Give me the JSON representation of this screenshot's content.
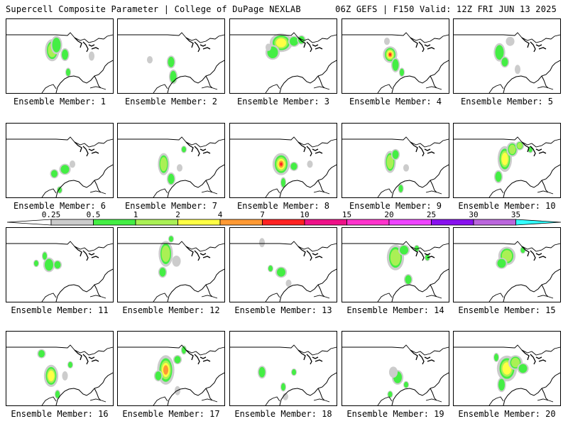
{
  "header": {
    "left": "Supercell Composite Parameter | College of DuPage NEXLAB",
    "right": "06Z GEFS | F150 Valid: 12Z FRI JUN 13 2025"
  },
  "members": [
    {
      "label": "Ensemble Member: 1",
      "blobs": [
        [
          0.43,
          0.42,
          0.05,
          0.12,
          2
        ],
        [
          0.47,
          0.35,
          0.04,
          0.1,
          1
        ],
        [
          0.55,
          0.48,
          0.03,
          0.07,
          1
        ],
        [
          0.58,
          0.72,
          0.02,
          0.05,
          1
        ],
        [
          0.8,
          0.5,
          0.02,
          0.05,
          0
        ]
      ]
    },
    {
      "label": "Ensemble Member: 2",
      "blobs": [
        [
          0.5,
          0.58,
          0.03,
          0.07,
          1
        ],
        [
          0.52,
          0.78,
          0.03,
          0.08,
          1
        ],
        [
          0.3,
          0.55,
          0.02,
          0.04,
          0
        ]
      ]
    },
    {
      "label": "Ensemble Member: 3",
      "blobs": [
        [
          0.48,
          0.32,
          0.08,
          0.1,
          3
        ],
        [
          0.4,
          0.45,
          0.05,
          0.08,
          1
        ],
        [
          0.6,
          0.3,
          0.04,
          0.06,
          1
        ],
        [
          0.67,
          0.28,
          0.03,
          0.05,
          1
        ],
        [
          0.36,
          0.38,
          0.02,
          0.04,
          0
        ]
      ]
    },
    {
      "label": "Ensemble Member: 4",
      "blobs": [
        [
          0.45,
          0.48,
          0.05,
          0.09,
          5
        ],
        [
          0.5,
          0.62,
          0.03,
          0.08,
          1
        ],
        [
          0.56,
          0.72,
          0.02,
          0.05,
          1
        ],
        [
          0.42,
          0.3,
          0.02,
          0.04,
          0
        ]
      ]
    },
    {
      "label": "Ensemble Member: 5",
      "blobs": [
        [
          0.43,
          0.45,
          0.04,
          0.1,
          1
        ],
        [
          0.48,
          0.58,
          0.03,
          0.06,
          1
        ],
        [
          0.53,
          0.3,
          0.03,
          0.05,
          0
        ],
        [
          0.6,
          0.68,
          0.02,
          0.05,
          0
        ]
      ]
    },
    {
      "label": "Ensemble Member: 6",
      "blobs": [
        [
          0.55,
          0.62,
          0.04,
          0.06,
          1
        ],
        [
          0.45,
          0.68,
          0.03,
          0.05,
          1
        ],
        [
          0.62,
          0.55,
          0.02,
          0.04,
          0
        ],
        [
          0.5,
          0.9,
          0.02,
          0.04,
          1
        ]
      ]
    },
    {
      "label": "Ensemble Member: 7",
      "blobs": [
        [
          0.43,
          0.55,
          0.04,
          0.12,
          2
        ],
        [
          0.5,
          0.75,
          0.03,
          0.07,
          1
        ],
        [
          0.62,
          0.35,
          0.02,
          0.04,
          1
        ],
        [
          0.58,
          0.6,
          0.02,
          0.04,
          0
        ]
      ]
    },
    {
      "label": "Ensemble Member: 8",
      "blobs": [
        [
          0.48,
          0.55,
          0.06,
          0.12,
          5
        ],
        [
          0.6,
          0.58,
          0.03,
          0.05,
          1
        ],
        [
          0.5,
          0.8,
          0.02,
          0.06,
          1
        ],
        [
          0.75,
          0.55,
          0.02,
          0.04,
          0
        ]
      ]
    },
    {
      "label": "Ensemble Member: 9",
      "blobs": [
        [
          0.45,
          0.52,
          0.04,
          0.12,
          2
        ],
        [
          0.5,
          0.42,
          0.03,
          0.06,
          1
        ],
        [
          0.55,
          0.88,
          0.02,
          0.05,
          1
        ],
        [
          0.6,
          0.6,
          0.02,
          0.04,
          0
        ]
      ]
    },
    {
      "label": "Ensemble Member: 10",
      "blobs": [
        [
          0.48,
          0.48,
          0.05,
          0.14,
          3
        ],
        [
          0.55,
          0.35,
          0.04,
          0.08,
          2
        ],
        [
          0.62,
          0.3,
          0.03,
          0.05,
          2
        ],
        [
          0.42,
          0.72,
          0.03,
          0.07,
          1
        ],
        [
          0.72,
          0.35,
          0.02,
          0.04,
          1
        ]
      ]
    },
    {
      "label": "Ensemble Member: 11",
      "blobs": [
        [
          0.4,
          0.5,
          0.04,
          0.08,
          1
        ],
        [
          0.36,
          0.38,
          0.02,
          0.05,
          1
        ],
        [
          0.48,
          0.5,
          0.03,
          0.05,
          1
        ],
        [
          0.28,
          0.48,
          0.02,
          0.04,
          1
        ]
      ]
    },
    {
      "label": "Ensemble Member: 12",
      "blobs": [
        [
          0.45,
          0.35,
          0.05,
          0.14,
          2
        ],
        [
          0.42,
          0.6,
          0.03,
          0.06,
          1
        ],
        [
          0.55,
          0.45,
          0.03,
          0.06,
          0
        ],
        [
          0.5,
          0.15,
          0.02,
          0.04,
          1
        ]
      ]
    },
    {
      "label": "Ensemble Member: 13",
      "blobs": [
        [
          0.48,
          0.6,
          0.04,
          0.06,
          1
        ],
        [
          0.38,
          0.55,
          0.02,
          0.04,
          1
        ],
        [
          0.3,
          0.2,
          0.02,
          0.05,
          0
        ],
        [
          0.55,
          0.75,
          0.02,
          0.04,
          0
        ]
      ]
    },
    {
      "label": "Ensemble Member: 14",
      "blobs": [
        [
          0.5,
          0.4,
          0.06,
          0.14,
          2
        ],
        [
          0.58,
          0.3,
          0.04,
          0.06,
          1
        ],
        [
          0.62,
          0.7,
          0.03,
          0.06,
          1
        ],
        [
          0.7,
          0.28,
          0.02,
          0.04,
          1
        ],
        [
          0.8,
          0.4,
          0.02,
          0.04,
          1
        ]
      ]
    },
    {
      "label": "Ensemble Member: 15",
      "blobs": [
        [
          0.5,
          0.38,
          0.06,
          0.1,
          2
        ],
        [
          0.45,
          0.48,
          0.04,
          0.06,
          1
        ],
        [
          0.65,
          0.3,
          0.02,
          0.04,
          1
        ]
      ]
    },
    {
      "label": "Ensemble Member: 16",
      "blobs": [
        [
          0.42,
          0.6,
          0.05,
          0.12,
          3
        ],
        [
          0.33,
          0.3,
          0.03,
          0.05,
          1
        ],
        [
          0.48,
          0.85,
          0.02,
          0.05,
          1
        ],
        [
          0.55,
          0.6,
          0.02,
          0.05,
          0
        ],
        [
          0.6,
          0.45,
          0.02,
          0.04,
          1
        ]
      ]
    },
    {
      "label": "Ensemble Member: 17",
      "blobs": [
        [
          0.45,
          0.52,
          0.06,
          0.16,
          4
        ],
        [
          0.38,
          0.6,
          0.03,
          0.06,
          1
        ],
        [
          0.56,
          0.38,
          0.03,
          0.05,
          1
        ],
        [
          0.62,
          0.25,
          0.02,
          0.05,
          1
        ],
        [
          0.56,
          0.8,
          0.02,
          0.05,
          0
        ]
      ]
    },
    {
      "label": "Ensemble Member: 18",
      "blobs": [
        [
          0.3,
          0.55,
          0.03,
          0.07,
          1
        ],
        [
          0.5,
          0.75,
          0.02,
          0.05,
          1
        ],
        [
          0.6,
          0.55,
          0.02,
          0.04,
          1
        ],
        [
          0.52,
          0.88,
          0.02,
          0.04,
          0
        ]
      ]
    },
    {
      "label": "Ensemble Member: 19",
      "blobs": [
        [
          0.52,
          0.62,
          0.04,
          0.08,
          1
        ],
        [
          0.48,
          0.55,
          0.03,
          0.06,
          0
        ],
        [
          0.6,
          0.72,
          0.02,
          0.04,
          1
        ],
        [
          0.45,
          0.85,
          0.02,
          0.04,
          1
        ]
      ]
    },
    {
      "label": "Ensemble Member: 20",
      "blobs": [
        [
          0.5,
          0.5,
          0.07,
          0.14,
          3
        ],
        [
          0.58,
          0.42,
          0.05,
          0.08,
          2
        ],
        [
          0.65,
          0.5,
          0.04,
          0.06,
          1
        ],
        [
          0.45,
          0.72,
          0.03,
          0.08,
          1
        ],
        [
          0.4,
          0.35,
          0.02,
          0.05,
          1
        ]
      ]
    }
  ],
  "colorbar": {
    "ticks": [
      "0.25",
      "0.5",
      "1",
      "2",
      "4",
      "7",
      "10",
      "15",
      "20",
      "25",
      "30",
      "35"
    ],
    "colors": [
      "#cccccc",
      "#44ee44",
      "#aaf055",
      "#ffff44",
      "#ff9933",
      "#ff2222",
      "#ee1188",
      "#ff33cc",
      "#ee44ff",
      "#8811ee",
      "#bb66dd",
      "#33ffff"
    ],
    "low_color": "#ffffff"
  }
}
